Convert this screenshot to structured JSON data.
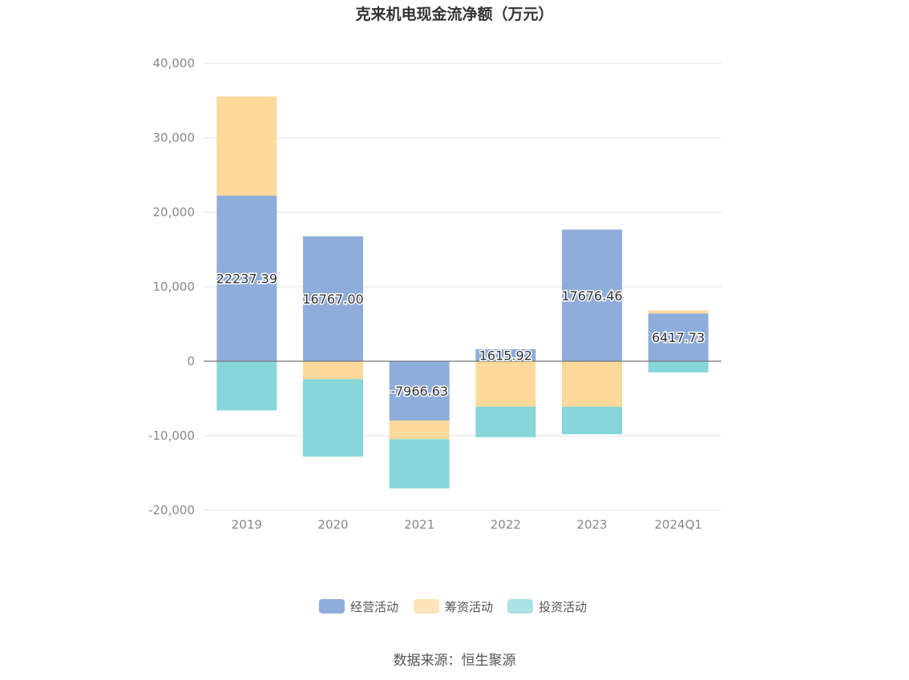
{
  "chart_data": {
    "type": "bar",
    "stacked": true,
    "title": "克来机电现金流净额（万元）",
    "categories": [
      "2019",
      "2020",
      "2021",
      "2022",
      "2023",
      "2024Q1"
    ],
    "series": [
      {
        "name": "经营活动",
        "color": "#8eadda",
        "values": [
          22237.39,
          16767.0,
          -7966.63,
          1615.92,
          17676.46,
          6417.73
        ],
        "labels": [
          "22237.39",
          "16767.00",
          "-7966.63",
          "1615.92",
          "17676.46",
          "6417.73"
        ]
      },
      {
        "name": "筹资活动",
        "color": "#fdd99b",
        "values": [
          13300,
          -2400,
          -2500,
          -6100,
          -6100,
          400
        ]
      },
      {
        "name": "投资活动",
        "color": "#87d6d9",
        "values": [
          -6600,
          -10400,
          -6600,
          -4100,
          -3700,
          -1500
        ]
      }
    ],
    "ylim": [
      -20000,
      40000
    ],
    "yticks": [
      40000,
      30000,
      20000,
      10000,
      0,
      -10000,
      -20000
    ],
    "ytick_labels": [
      "40,000",
      "30,000",
      "20,000",
      "10,000",
      "0",
      "-10,000",
      "-20,000"
    ],
    "grid": true,
    "legend_position": "bottom-center",
    "source": "数据来源：恒生聚源"
  }
}
